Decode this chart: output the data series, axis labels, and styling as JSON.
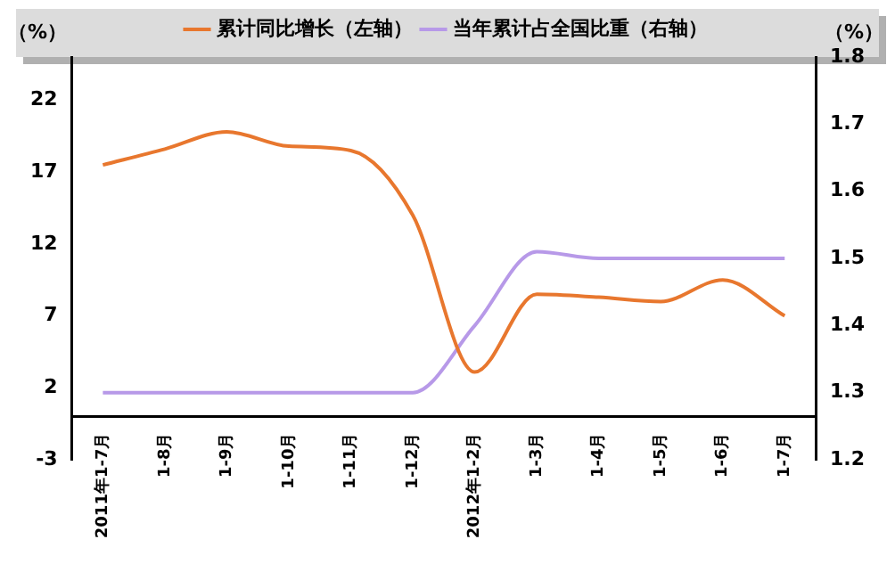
{
  "chart_data": {
    "type": "line",
    "ylabel": "（%）",
    "y2label": "（%）",
    "categories": [
      "2011年1-7月",
      "1-8月",
      "1-9月",
      "1-10月",
      "1-11月",
      "1-12月",
      "2012年1-2月",
      "1-3月",
      "1-4月",
      "1-5月",
      "1-6月",
      "1-7月"
    ],
    "series": [
      {
        "name": "累计同比增长（左轴）",
        "color": "#e8772e",
        "values": [
          17.5,
          18.6,
          19.8,
          18.8,
          18.5,
          14,
          3.1,
          8.5,
          8.3,
          8,
          9.5,
          7
        ]
      },
      {
        "name": "当年累计占全国比重（右轴）",
        "color": "#b799e8",
        "axis": "y2",
        "values": [
          1.3,
          1.3,
          1.3,
          1.3,
          1.3,
          1.3,
          1.4,
          1.51,
          1.5,
          1.5,
          1.5,
          1.5
        ]
      }
    ],
    "ylim": [
      -3,
      25
    ],
    "yticks": [
      -3,
      2,
      7,
      12,
      17,
      22
    ],
    "y2lim": [
      1.2,
      1.8
    ],
    "y2ticks": [
      1.2,
      1.3,
      1.4,
      1.5,
      1.6,
      1.7,
      1.8
    ],
    "grid": false,
    "legend": "top",
    "marker": "none",
    "line_style": "solid"
  }
}
